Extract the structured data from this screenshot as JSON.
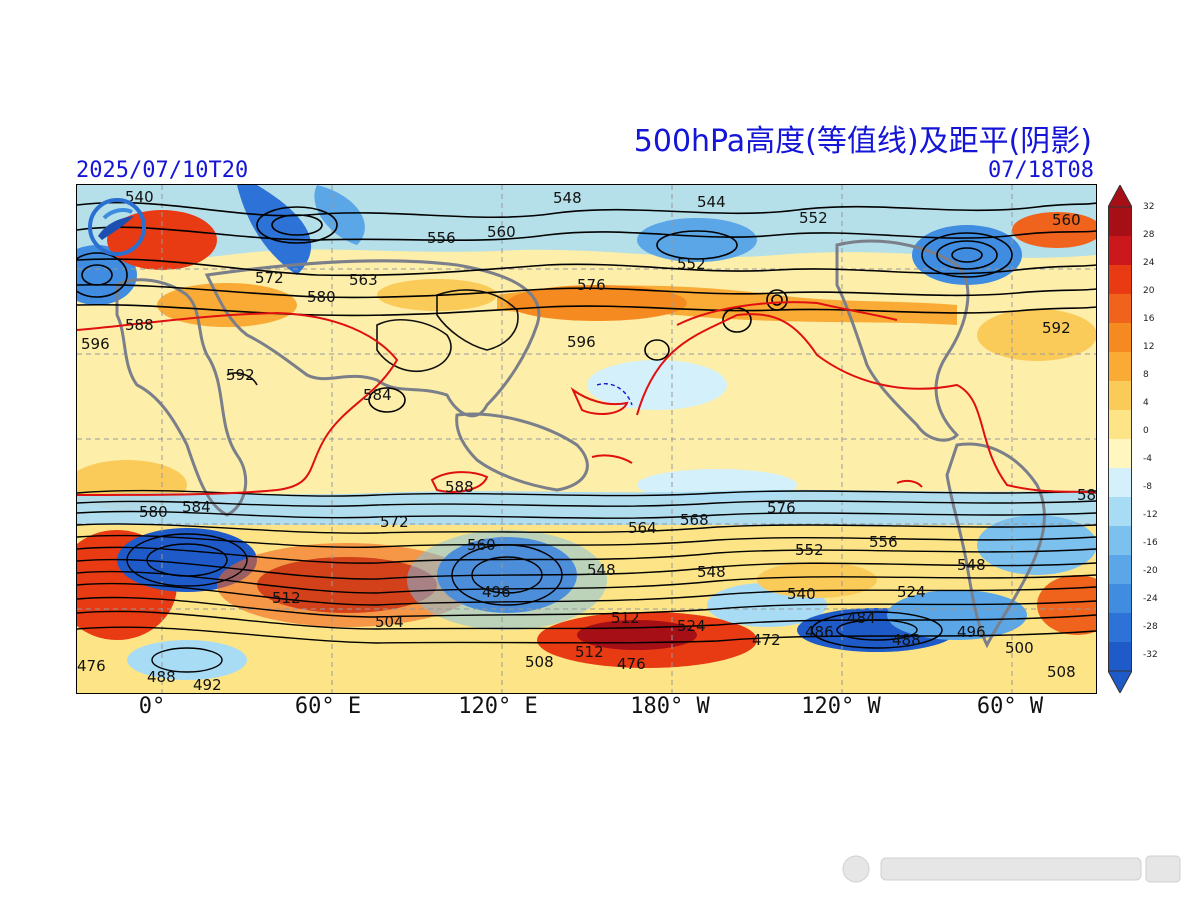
{
  "title": "500hPa高度(等值线)及距平(阴影)",
  "init_time": "2025/07/10T20",
  "valid_time": "07/18T08",
  "longitude_labels": [
    "0°",
    "60° E",
    "120° E",
    "180° W",
    "120° W",
    "60° W"
  ],
  "colorbar": {
    "ticks": [
      "32",
      "28",
      "24",
      "20",
      "16",
      "12",
      "8",
      "4",
      "0",
      "-4",
      "-8",
      "-12",
      "-16",
      "-20",
      "-24",
      "-28",
      "-32"
    ],
    "colors": [
      "#a50f15",
      "#cb181d",
      "#e83a13",
      "#f0631c",
      "#f58b20",
      "#f9ab35",
      "#fbcb5a",
      "#fde587",
      "#fff6c0",
      "#d4f1fb",
      "#a8dcf5",
      "#7cc1ee",
      "#5aa6e6",
      "#3f8ce0",
      "#2d72d6",
      "#1f5bc8"
    ]
  },
  "contour_labels": [
    "540",
    "548",
    "544",
    "552",
    "560",
    "556",
    "560",
    "572",
    "563",
    "580",
    "576",
    "552",
    "588",
    "592",
    "596",
    "592",
    "584",
    "588",
    "596",
    "584",
    "572",
    "560",
    "564",
    "568",
    "576",
    "552",
    "556",
    "548",
    "588",
    "580",
    "548",
    "540",
    "512",
    "496",
    "504",
    "512",
    "508",
    "512",
    "476",
    "524",
    "472",
    "486",
    "484",
    "496",
    "488",
    "524",
    "548",
    "500",
    "508",
    "488",
    "492",
    "476"
  ],
  "icons": {
    "logo": "weather-agency-logo-icon",
    "watermark": "platform-watermark-icon"
  }
}
